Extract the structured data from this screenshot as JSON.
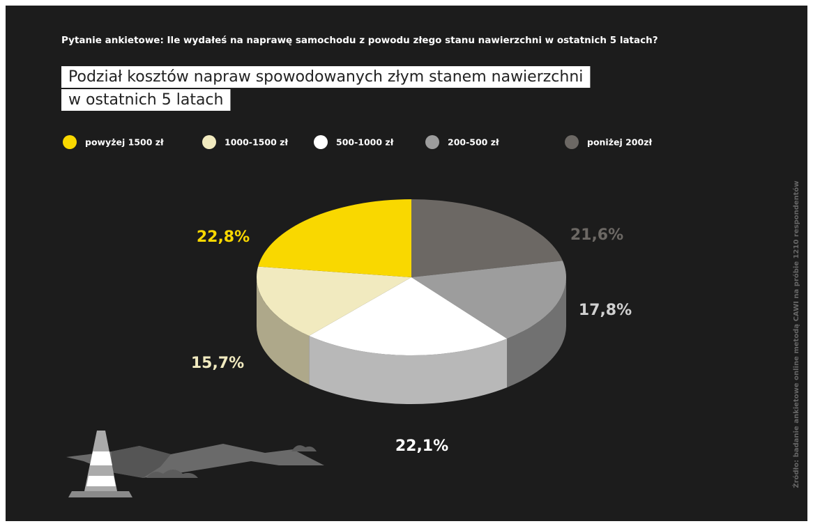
{
  "chart_data": {
    "type": "pie3d",
    "question": "Pytanie ankietowe: Ile wydałeś na naprawę samochodu z powodu złego stanu nawierzchni w ostatnich 5 latach?",
    "title": [
      "Podział kosztów napraw spowodowanych złym stanem nawierzchni",
      "w ostatnich 5 latach"
    ],
    "source": "Źródło: badanie ankietowe online metodą CAWI na próbie 1210 respondentów",
    "series": [
      {
        "name": "powyżej 1500 zł",
        "color": "#f9d800",
        "values": [
          22.8
        ],
        "value_labels": [
          "22,8%"
        ]
      },
      {
        "name": "1000-1500 zł",
        "color": "#f1eabf",
        "values": [
          15.7
        ],
        "value_labels": [
          "15,7%"
        ]
      },
      {
        "name": "500-1000 zł",
        "color": "#ffffff",
        "values": [
          22.1
        ],
        "value_labels": [
          "22,1%"
        ]
      },
      {
        "name": "200-500 zł",
        "color": "#9d9d9d",
        "values": [
          17.8
        ],
        "value_labels": [
          "17,8%"
        ]
      },
      {
        "name": "poniżej 200zł",
        "color": "#6c6864",
        "values": [
          21.6
        ],
        "value_labels": [
          "21,6%"
        ]
      }
    ]
  }
}
